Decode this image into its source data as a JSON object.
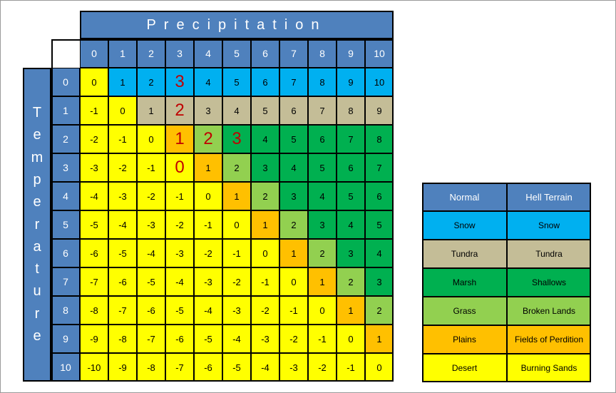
{
  "precipitation_title": "Precipitation",
  "temperature_title": "Temperature",
  "precipitation_values": [
    "0",
    "1",
    "2",
    "3",
    "4",
    "5",
    "6",
    "7",
    "8",
    "9",
    "10"
  ],
  "temperature_values": [
    "0",
    "1",
    "2",
    "3",
    "4",
    "5",
    "6",
    "7",
    "8",
    "9",
    "10"
  ],
  "terrain_colors": {
    "snow": "#00b0f0",
    "tundra": "#c4bd97",
    "marsh": "#00b050",
    "grass": "#92d050",
    "plains": "#ffc000",
    "desert": "#ffff00"
  },
  "header_color": "#4f81bd",
  "highlight_color": "#c00000",
  "grid": [
    [
      {
        "v": "0",
        "t": "desert"
      },
      {
        "v": "1",
        "t": "snow"
      },
      {
        "v": "2",
        "t": "snow"
      },
      {
        "v": "3",
        "t": "snow",
        "big": true
      },
      {
        "v": "4",
        "t": "snow"
      },
      {
        "v": "5",
        "t": "snow"
      },
      {
        "v": "6",
        "t": "snow"
      },
      {
        "v": "7",
        "t": "snow"
      },
      {
        "v": "8",
        "t": "snow"
      },
      {
        "v": "9",
        "t": "snow"
      },
      {
        "v": "10",
        "t": "snow"
      }
    ],
    [
      {
        "v": "-1",
        "t": "desert"
      },
      {
        "v": "0",
        "t": "desert"
      },
      {
        "v": "1",
        "t": "tundra"
      },
      {
        "v": "2",
        "t": "tundra",
        "big": true
      },
      {
        "v": "3",
        "t": "tundra"
      },
      {
        "v": "4",
        "t": "tundra"
      },
      {
        "v": "5",
        "t": "tundra"
      },
      {
        "v": "6",
        "t": "tundra"
      },
      {
        "v": "7",
        "t": "tundra"
      },
      {
        "v": "8",
        "t": "tundra"
      },
      {
        "v": "9",
        "t": "tundra"
      }
    ],
    [
      {
        "v": "-2",
        "t": "desert"
      },
      {
        "v": "-1",
        "t": "desert"
      },
      {
        "v": "0",
        "t": "desert"
      },
      {
        "v": "1",
        "t": "plains",
        "big": true
      },
      {
        "v": "2",
        "t": "grass",
        "big": true
      },
      {
        "v": "3",
        "t": "marsh",
        "big": true
      },
      {
        "v": "4",
        "t": "marsh"
      },
      {
        "v": "5",
        "t": "marsh"
      },
      {
        "v": "6",
        "t": "marsh"
      },
      {
        "v": "7",
        "t": "marsh"
      },
      {
        "v": "8",
        "t": "marsh"
      }
    ],
    [
      {
        "v": "-3",
        "t": "desert"
      },
      {
        "v": "-2",
        "t": "desert"
      },
      {
        "v": "-1",
        "t": "desert"
      },
      {
        "v": "0",
        "t": "desert",
        "big": true
      },
      {
        "v": "1",
        "t": "plains"
      },
      {
        "v": "2",
        "t": "grass"
      },
      {
        "v": "3",
        "t": "marsh"
      },
      {
        "v": "4",
        "t": "marsh"
      },
      {
        "v": "5",
        "t": "marsh"
      },
      {
        "v": "6",
        "t": "marsh"
      },
      {
        "v": "7",
        "t": "marsh"
      }
    ],
    [
      {
        "v": "-4",
        "t": "desert"
      },
      {
        "v": "-3",
        "t": "desert"
      },
      {
        "v": "-2",
        "t": "desert"
      },
      {
        "v": "-1",
        "t": "desert"
      },
      {
        "v": "0",
        "t": "desert"
      },
      {
        "v": "1",
        "t": "plains"
      },
      {
        "v": "2",
        "t": "grass"
      },
      {
        "v": "3",
        "t": "marsh"
      },
      {
        "v": "4",
        "t": "marsh"
      },
      {
        "v": "5",
        "t": "marsh"
      },
      {
        "v": "6",
        "t": "marsh"
      }
    ],
    [
      {
        "v": "-5",
        "t": "desert"
      },
      {
        "v": "-4",
        "t": "desert"
      },
      {
        "v": "-3",
        "t": "desert"
      },
      {
        "v": "-2",
        "t": "desert"
      },
      {
        "v": "-1",
        "t": "desert"
      },
      {
        "v": "0",
        "t": "desert"
      },
      {
        "v": "1",
        "t": "plains"
      },
      {
        "v": "2",
        "t": "grass"
      },
      {
        "v": "3",
        "t": "marsh"
      },
      {
        "v": "4",
        "t": "marsh"
      },
      {
        "v": "5",
        "t": "marsh"
      }
    ],
    [
      {
        "v": "-6",
        "t": "desert"
      },
      {
        "v": "-5",
        "t": "desert"
      },
      {
        "v": "-4",
        "t": "desert"
      },
      {
        "v": "-3",
        "t": "desert"
      },
      {
        "v": "-2",
        "t": "desert"
      },
      {
        "v": "-1",
        "t": "desert"
      },
      {
        "v": "0",
        "t": "desert"
      },
      {
        "v": "1",
        "t": "plains"
      },
      {
        "v": "2",
        "t": "grass"
      },
      {
        "v": "3",
        "t": "marsh"
      },
      {
        "v": "4",
        "t": "marsh"
      }
    ],
    [
      {
        "v": "-7",
        "t": "desert"
      },
      {
        "v": "-6",
        "t": "desert"
      },
      {
        "v": "-5",
        "t": "desert"
      },
      {
        "v": "-4",
        "t": "desert"
      },
      {
        "v": "-3",
        "t": "desert"
      },
      {
        "v": "-2",
        "t": "desert"
      },
      {
        "v": "-1",
        "t": "desert"
      },
      {
        "v": "0",
        "t": "desert"
      },
      {
        "v": "1",
        "t": "plains"
      },
      {
        "v": "2",
        "t": "grass"
      },
      {
        "v": "3",
        "t": "marsh"
      }
    ],
    [
      {
        "v": "-8",
        "t": "desert"
      },
      {
        "v": "-7",
        "t": "desert"
      },
      {
        "v": "-6",
        "t": "desert"
      },
      {
        "v": "-5",
        "t": "desert"
      },
      {
        "v": "-4",
        "t": "desert"
      },
      {
        "v": "-3",
        "t": "desert"
      },
      {
        "v": "-2",
        "t": "desert"
      },
      {
        "v": "-1",
        "t": "desert"
      },
      {
        "v": "0",
        "t": "desert"
      },
      {
        "v": "1",
        "t": "plains"
      },
      {
        "v": "2",
        "t": "grass"
      }
    ],
    [
      {
        "v": "-9",
        "t": "desert"
      },
      {
        "v": "-8",
        "t": "desert"
      },
      {
        "v": "-7",
        "t": "desert"
      },
      {
        "v": "-6",
        "t": "desert"
      },
      {
        "v": "-5",
        "t": "desert"
      },
      {
        "v": "-4",
        "t": "desert"
      },
      {
        "v": "-3",
        "t": "desert"
      },
      {
        "v": "-2",
        "t": "desert"
      },
      {
        "v": "-1",
        "t": "desert"
      },
      {
        "v": "0",
        "t": "desert"
      },
      {
        "v": "1",
        "t": "plains"
      }
    ],
    [
      {
        "v": "-10",
        "t": "desert"
      },
      {
        "v": "-9",
        "t": "desert"
      },
      {
        "v": "-8",
        "t": "desert"
      },
      {
        "v": "-7",
        "t": "desert"
      },
      {
        "v": "-6",
        "t": "desert"
      },
      {
        "v": "-5",
        "t": "desert"
      },
      {
        "v": "-4",
        "t": "desert"
      },
      {
        "v": "-3",
        "t": "desert"
      },
      {
        "v": "-2",
        "t": "desert"
      },
      {
        "v": "-1",
        "t": "desert"
      },
      {
        "v": "0",
        "t": "desert"
      }
    ]
  ],
  "legend": {
    "headers": [
      "Normal",
      "Hell Terrain"
    ],
    "rows": [
      {
        "normal": "Snow",
        "hell": "Snow",
        "t": "snow"
      },
      {
        "normal": "Tundra",
        "hell": "Tundra",
        "t": "tundra"
      },
      {
        "normal": "Marsh",
        "hell": "Shallows",
        "t": "marsh"
      },
      {
        "normal": "Grass",
        "hell": "Broken Lands",
        "t": "grass"
      },
      {
        "normal": "Plains",
        "hell": "Fields of Perdition",
        "t": "plains"
      },
      {
        "normal": "Desert",
        "hell": "Burning Sands",
        "t": "desert"
      }
    ]
  }
}
